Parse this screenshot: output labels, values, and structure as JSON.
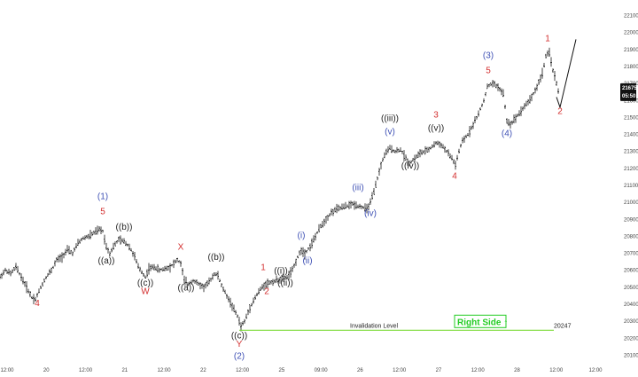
{
  "colors": {
    "bars": "#111111",
    "red_labels": "#d32f2f",
    "blue_labels": "#3f51b5",
    "black_labels": "#222222",
    "invalidation": "#7ddc3a",
    "right_side": "#22cc22",
    "price_tag_bg": "#111111"
  },
  "chart_data": {
    "type": "ohlc",
    "x_ticks": [
      "12:00",
      "20",
      "12:00",
      "21",
      "12:00",
      "22",
      "12:00",
      "25",
      "09:00",
      "26",
      "12:00",
      "27",
      "12:00",
      "28",
      "12:00",
      "12:00"
    ],
    "y_ticks": [
      20100,
      20200,
      20300,
      20400,
      20500,
      20600,
      20700,
      20800,
      20900,
      21000,
      21100,
      21200,
      21300,
      21400,
      21500,
      21600,
      21700,
      21800,
      21900,
      22000,
      22100
    ],
    "ylim": [
      20050,
      22150
    ],
    "current_price": {
      "value": "21675",
      "time": "05:50"
    },
    "invalidation": {
      "label": "Invalidation Level",
      "value": "20247"
    },
    "right_side_label": "Right Side ↑",
    "path": [
      [
        0,
        20560
      ],
      [
        6,
        20600
      ],
      [
        12,
        20580
      ],
      [
        18,
        20620
      ],
      [
        24,
        20560
      ],
      [
        30,
        20500
      ],
      [
        36,
        20440
      ],
      [
        40,
        20430
      ],
      [
        46,
        20500
      ],
      [
        52,
        20560
      ],
      [
        58,
        20600
      ],
      [
        64,
        20660
      ],
      [
        70,
        20680
      ],
      [
        76,
        20720
      ],
      [
        82,
        20700
      ],
      [
        88,
        20760
      ],
      [
        94,
        20790
      ],
      [
        100,
        20800
      ],
      [
        106,
        20820
      ],
      [
        112,
        20840
      ],
      [
        116,
        20830
      ],
      [
        120,
        20740
      ],
      [
        124,
        20700
      ],
      [
        128,
        20740
      ],
      [
        134,
        20780
      ],
      [
        140,
        20770
      ],
      [
        146,
        20740
      ],
      [
        152,
        20680
      ],
      [
        156,
        20620
      ],
      [
        160,
        20590
      ],
      [
        164,
        20560
      ],
      [
        168,
        20610
      ],
      [
        174,
        20620
      ],
      [
        180,
        20600
      ],
      [
        186,
        20610
      ],
      [
        192,
        20620
      ],
      [
        196,
        20640
      ],
      [
        200,
        20660
      ],
      [
        204,
        20640
      ],
      [
        208,
        20540
      ],
      [
        212,
        20520
      ],
      [
        218,
        20540
      ],
      [
        224,
        20520
      ],
      [
        230,
        20500
      ],
      [
        236,
        20530
      ],
      [
        242,
        20580
      ],
      [
        246,
        20570
      ],
      [
        250,
        20510
      ],
      [
        256,
        20450
      ],
      [
        262,
        20390
      ],
      [
        268,
        20330
      ],
      [
        272,
        20270
      ],
      [
        276,
        20300
      ],
      [
        282,
        20380
      ],
      [
        288,
        20440
      ],
      [
        294,
        20490
      ],
      [
        300,
        20520
      ],
      [
        306,
        20530
      ],
      [
        312,
        20540
      ],
      [
        318,
        20550
      ],
      [
        324,
        20560
      ],
      [
        330,
        20600
      ],
      [
        336,
        20680
      ],
      [
        340,
        20720
      ],
      [
        344,
        20700
      ],
      [
        350,
        20740
      ],
      [
        356,
        20800
      ],
      [
        362,
        20860
      ],
      [
        368,
        20900
      ],
      [
        374,
        20940
      ],
      [
        380,
        20960
      ],
      [
        386,
        20970
      ],
      [
        392,
        20980
      ],
      [
        398,
        20990
      ],
      [
        404,
        20980
      ],
      [
        410,
        20970
      ],
      [
        414,
        20960
      ],
      [
        418,
        21000
      ],
      [
        422,
        21060
      ],
      [
        426,
        21140
      ],
      [
        430,
        21220
      ],
      [
        434,
        21280
      ],
      [
        440,
        21320
      ],
      [
        446,
        21300
      ],
      [
        452,
        21310
      ],
      [
        458,
        21260
      ],
      [
        462,
        21230
      ],
      [
        468,
        21260
      ],
      [
        474,
        21290
      ],
      [
        480,
        21300
      ],
      [
        486,
        21320
      ],
      [
        492,
        21350
      ],
      [
        498,
        21340
      ],
      [
        504,
        21300
      ],
      [
        510,
        21260
      ],
      [
        514,
        21220
      ],
      [
        518,
        21300
      ],
      [
        522,
        21360
      ],
      [
        528,
        21400
      ],
      [
        534,
        21460
      ],
      [
        540,
        21520
      ],
      [
        546,
        21600
      ],
      [
        550,
        21680
      ],
      [
        556,
        21700
      ],
      [
        562,
        21680
      ],
      [
        568,
        21640
      ],
      [
        572,
        21480
      ],
      [
        576,
        21460
      ],
      [
        582,
        21500
      ],
      [
        588,
        21540
      ],
      [
        594,
        21580
      ],
      [
        600,
        21620
      ],
      [
        606,
        21680
      ],
      [
        612,
        21760
      ],
      [
        616,
        21860
      ],
      [
        620,
        21880
      ],
      [
        624,
        21780
      ],
      [
        628,
        21700
      ],
      [
        632,
        21620
      ]
    ],
    "projection": [
      [
        628,
        21620
      ],
      [
        632,
        21560
      ],
      [
        650,
        21960
      ]
    ],
    "wave_labels": [
      {
        "text": "4",
        "x": 42,
        "y": 20390,
        "color": "red"
      },
      {
        "text": "(1)",
        "x": 116,
        "y": 21020,
        "color": "blue"
      },
      {
        "text": "5",
        "x": 116,
        "y": 20930,
        "color": "red"
      },
      {
        "text": "((b))",
        "x": 140,
        "y": 20840,
        "color": "black"
      },
      {
        "text": "((a))",
        "x": 120,
        "y": 20640,
        "color": "black"
      },
      {
        "text": "((c))",
        "x": 164,
        "y": 20510,
        "color": "black"
      },
      {
        "text": "W",
        "x": 164,
        "y": 20460,
        "color": "red"
      },
      {
        "text": "X",
        "x": 204,
        "y": 20720,
        "color": "red"
      },
      {
        "text": "((a))",
        "x": 210,
        "y": 20480,
        "color": "black"
      },
      {
        "text": "((b))",
        "x": 244,
        "y": 20660,
        "color": "black"
      },
      {
        "text": "((c))",
        "x": 270,
        "y": 20200,
        "color": "black"
      },
      {
        "text": "Y",
        "x": 270,
        "y": 20150,
        "color": "red"
      },
      {
        "text": "(2)",
        "x": 270,
        "y": 20080,
        "color": "blue"
      },
      {
        "text": "1",
        "x": 297,
        "y": 20600,
        "color": "red"
      },
      {
        "text": "2",
        "x": 301,
        "y": 20460,
        "color": "red"
      },
      {
        "text": "((i))",
        "x": 317,
        "y": 20580,
        "color": "black"
      },
      {
        "text": "((ii))",
        "x": 322,
        "y": 20510,
        "color": "black"
      },
      {
        "text": "(i)",
        "x": 340,
        "y": 20790,
        "color": "blue"
      },
      {
        "text": "(ii)",
        "x": 347,
        "y": 20640,
        "color": "blue"
      },
      {
        "text": "(iii)",
        "x": 404,
        "y": 21070,
        "color": "blue"
      },
      {
        "text": "(iv)",
        "x": 418,
        "y": 20920,
        "color": "blue"
      },
      {
        "text": "((iii))",
        "x": 440,
        "y": 21480,
        "color": "black"
      },
      {
        "text": "(v)",
        "x": 440,
        "y": 21400,
        "color": "blue"
      },
      {
        "text": "((iv))",
        "x": 463,
        "y": 21200,
        "color": "black"
      },
      {
        "text": "3",
        "x": 492,
        "y": 21500,
        "color": "red"
      },
      {
        "text": "((v))",
        "x": 492,
        "y": 21420,
        "color": "black"
      },
      {
        "text": "4",
        "x": 513,
        "y": 21140,
        "color": "red"
      },
      {
        "text": "(3)",
        "x": 551,
        "y": 21850,
        "color": "blue"
      },
      {
        "text": "5",
        "x": 551,
        "y": 21760,
        "color": "red"
      },
      {
        "text": "(4)",
        "x": 572,
        "y": 21390,
        "color": "blue"
      },
      {
        "text": "1",
        "x": 618,
        "y": 21950,
        "color": "red"
      },
      {
        "text": "2",
        "x": 632,
        "y": 21520,
        "color": "red"
      }
    ]
  }
}
